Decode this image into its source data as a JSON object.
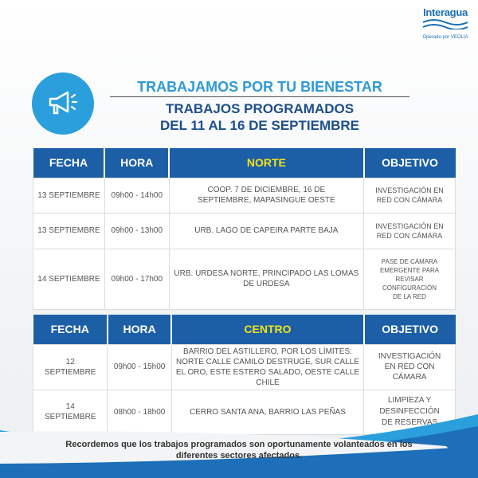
{
  "logo": {
    "name": "Interagua",
    "sub": "Operado por VEOLIA"
  },
  "header": {
    "icon": "megaphone-icon",
    "title": "TRABAJAMOS POR TU BIENESTAR",
    "subtitle1": "TRABAJOS PROGRAMADOS",
    "subtitle2": "DEL 11 AL 16 DE SEPTIEMBRE"
  },
  "colors": {
    "header_bg": "#1c5fa6",
    "zone": "#f4e21a",
    "accent": "#2a9fdc"
  },
  "tables": [
    {
      "headers": [
        "FECHA",
        "HORA",
        "NORTE",
        "OBJETIVO"
      ],
      "rows": [
        [
          "13 SEPTIEMBRE",
          "09h00 - 14h00",
          "COOP. 7 DE DICIEMBRE, 16 DE SEPTIEMBRE, MAPASINGUE OESTE",
          "INVESTIGACIÓN EN RED CON CÁMARA"
        ],
        [
          "13 SEPTIEMBRE",
          "09h00 - 13h00",
          "URB. LAGO DE CAPEIRA PARTE BAJA",
          "INVESTIGACIÓN EN RED CON CÁMARA"
        ],
        [
          "14 SEPTIEMBRE",
          "09h00 - 17h00",
          "URB. URDESA NORTE, PRINCIPADO LAS LOMAS DE URDESA",
          "PASE DE CÁMARA EMERGENTE PARA REVISAR CONFIGURACIÓN DE LA RED"
        ]
      ]
    },
    {
      "headers": [
        "FECHA",
        "HORA",
        "CENTRO",
        "OBJETIVO"
      ],
      "rows": [
        [
          "12 SEPTIEMBRE",
          "09h00 - 15h00",
          "BARRIO DEL ASTILLERO, POR LOS LÍMITES: NORTE CALLE CAMILO DESTRUGE, SUR CALLE EL ORO, ESTE ESTERO SALADO, OESTE CALLE CHILE",
          "INVESTIGACIÓN EN RED CON  CÁMARA"
        ],
        [
          "14 SEPTIEMBRE",
          "08h00 - 18h00",
          "CERRO SANTA ANA, BARRIO LAS PEÑAS",
          "LIMPIEZA Y DESINFECCIÓN DE RESERVAS"
        ]
      ]
    }
  ],
  "footer": "Recordemos que los trabajos programados son oportunamente volanteados en los diferentes sectores afectados."
}
